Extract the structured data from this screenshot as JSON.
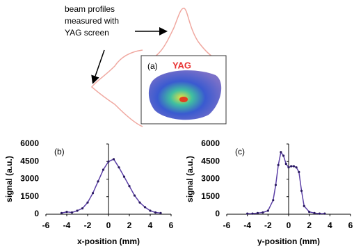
{
  "figure": {
    "annotation": [
      "beam profiles",
      "measured with",
      "YAG screen"
    ],
    "panel_label": "(a)",
    "panel_title": "YAG"
  },
  "chart_data": [
    {
      "type": "line",
      "panel_label": "(b)",
      "xlabel": "x-position (mm)",
      "ylabel": "signal (a.u.)",
      "color": "#5b3fa6",
      "x": [
        -4.5,
        -4,
        -3.5,
        -3,
        -2.5,
        -2,
        -1.5,
        -1,
        -0.5,
        0,
        0.5,
        1,
        1.5,
        2,
        2.5,
        3,
        3.5,
        4,
        4.5,
        5
      ],
      "values": [
        100,
        200,
        150,
        300,
        500,
        1000,
        1800,
        2800,
        3800,
        4500,
        4700,
        4000,
        3200,
        2400,
        1600,
        1000,
        600,
        300,
        150,
        100
      ],
      "xlim": [
        -6,
        6
      ],
      "xticks": [
        -6,
        -4,
        -2,
        0,
        2,
        4,
        6
      ],
      "ylim": [
        0,
        6000
      ],
      "yticks": [
        0,
        1500,
        3000,
        4500,
        6000
      ]
    },
    {
      "type": "line",
      "panel_label": "(c)",
      "xlabel": "y-position (mm)",
      "ylabel": "signal (a.u.)",
      "color": "#5b3fa6",
      "x": [
        -4,
        -3.5,
        -3,
        -2.5,
        -2,
        -1.5,
        -1.25,
        -1,
        -0.75,
        -0.5,
        -0.25,
        0,
        0.25,
        0.5,
        0.75,
        1,
        1.25,
        1.5,
        2,
        2.5,
        3,
        3.5
      ],
      "values": [
        50,
        50,
        100,
        150,
        300,
        1200,
        2500,
        4200,
        5300,
        5000,
        4300,
        4000,
        4100,
        4100,
        4000,
        3600,
        2000,
        700,
        200,
        100,
        50,
        50
      ],
      "xlim": [
        -6,
        6
      ],
      "xticks": [
        -6,
        -4,
        -2,
        0,
        2,
        4,
        6
      ],
      "ylim": [
        0,
        6000
      ],
      "yticks": [
        0,
        1500,
        3000,
        4500,
        6000
      ]
    }
  ]
}
